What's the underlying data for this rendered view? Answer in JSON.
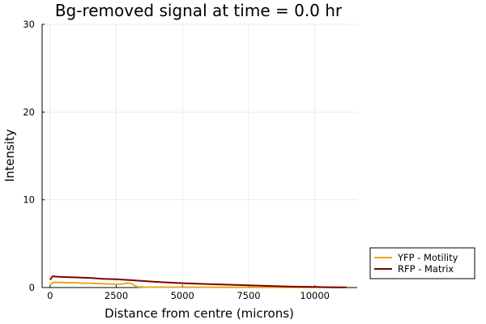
{
  "chart_data": {
    "type": "line",
    "title": "Bg-removed signal at time = 0.0 hr",
    "xlabel": "Distance from centre (microns)",
    "ylabel": "Intensity",
    "xlim": [
      -300,
      11600
    ],
    "ylim": [
      0,
      30
    ],
    "xticks": [
      0,
      2500,
      5000,
      7500,
      10000
    ],
    "yticks": [
      0,
      10,
      20,
      30
    ],
    "grid": true,
    "legend_position": "outside-bottom-right",
    "series": [
      {
        "name": "YFP - Motility",
        "color": "#e6a820",
        "x": [
          0,
          100,
          200,
          400,
          600,
          800,
          1000,
          1200,
          1500,
          1800,
          2100,
          2400,
          2700,
          2900,
          3050,
          3150,
          3300,
          3600,
          4000,
          5000,
          6000,
          7000,
          8000,
          9000,
          10000,
          11000,
          11200
        ],
        "y": [
          0.3,
          0.55,
          0.6,
          0.58,
          0.55,
          0.55,
          0.55,
          0.5,
          0.5,
          0.45,
          0.42,
          0.38,
          0.4,
          0.5,
          0.5,
          0.3,
          0.08,
          0.05,
          0.05,
          0.04,
          0.04,
          0.03,
          0.03,
          0.02,
          0.02,
          0.02,
          0.02
        ]
      },
      {
        "name": "RFP - Matrix",
        "color": "#800000",
        "x": [
          0,
          100,
          200,
          500,
          1000,
          1500,
          2000,
          2500,
          3000,
          3500,
          4000,
          5000,
          6000,
          7000,
          7500,
          8000,
          9000,
          10000,
          10500,
          11000,
          11200
        ],
        "y": [
          0.9,
          1.3,
          1.25,
          1.2,
          1.15,
          1.1,
          1.0,
          0.95,
          0.85,
          0.75,
          0.65,
          0.5,
          0.4,
          0.3,
          0.25,
          0.2,
          0.12,
          0.07,
          0.04,
          0.02,
          0.02
        ]
      }
    ]
  }
}
